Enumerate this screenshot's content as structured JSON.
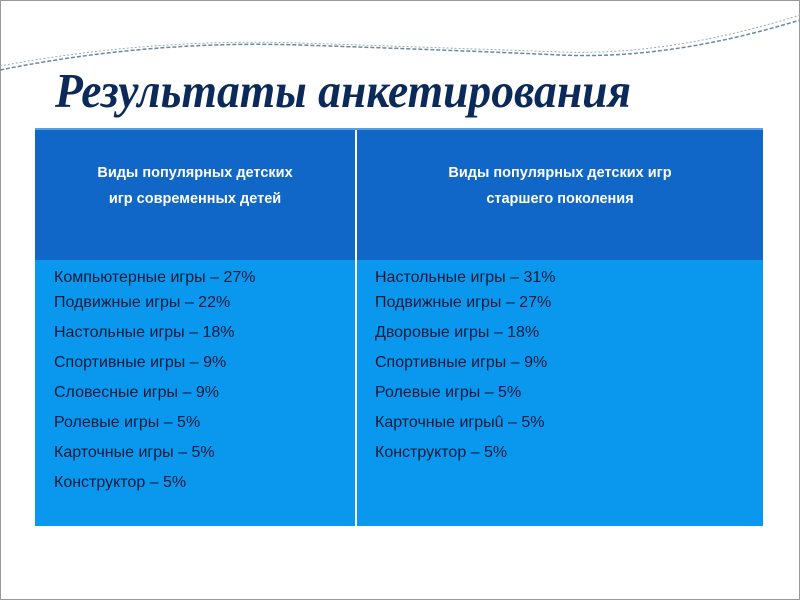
{
  "title": "Результаты анкетирования",
  "table": {
    "headers": [
      "Виды популярных детских игр современных детей",
      "Виды популярных детских игр старшего поколения"
    ],
    "header_lines": [
      [
        "Виды популярных детских",
        "игр современных детей"
      ],
      [
        "Виды популярных детских игр",
        "старшего поколения"
      ]
    ],
    "col1": [
      "Компьютерные игры – 27%",
      "Подвижные игры – 22%",
      "Настольные игры – 18%",
      "Спортивные игры – 9%",
      "Словесные игры – 9%",
      "Ролевые игры – 5%",
      "Карточные игры – 5%",
      "Конструктор – 5%"
    ],
    "col2": [
      "Настольные игры – 31%",
      "Подвижные игры – 27%",
      "Дворовые игры – 18%",
      "Спортивные игры – 9%",
      "Ролевые игры – 5%",
      "Карточные игрыû – 5%",
      "Конструктор – 5%"
    ]
  },
  "colors": {
    "header": "#1167c8",
    "body": "#0a98ee",
    "title": "#0b2a5a"
  }
}
